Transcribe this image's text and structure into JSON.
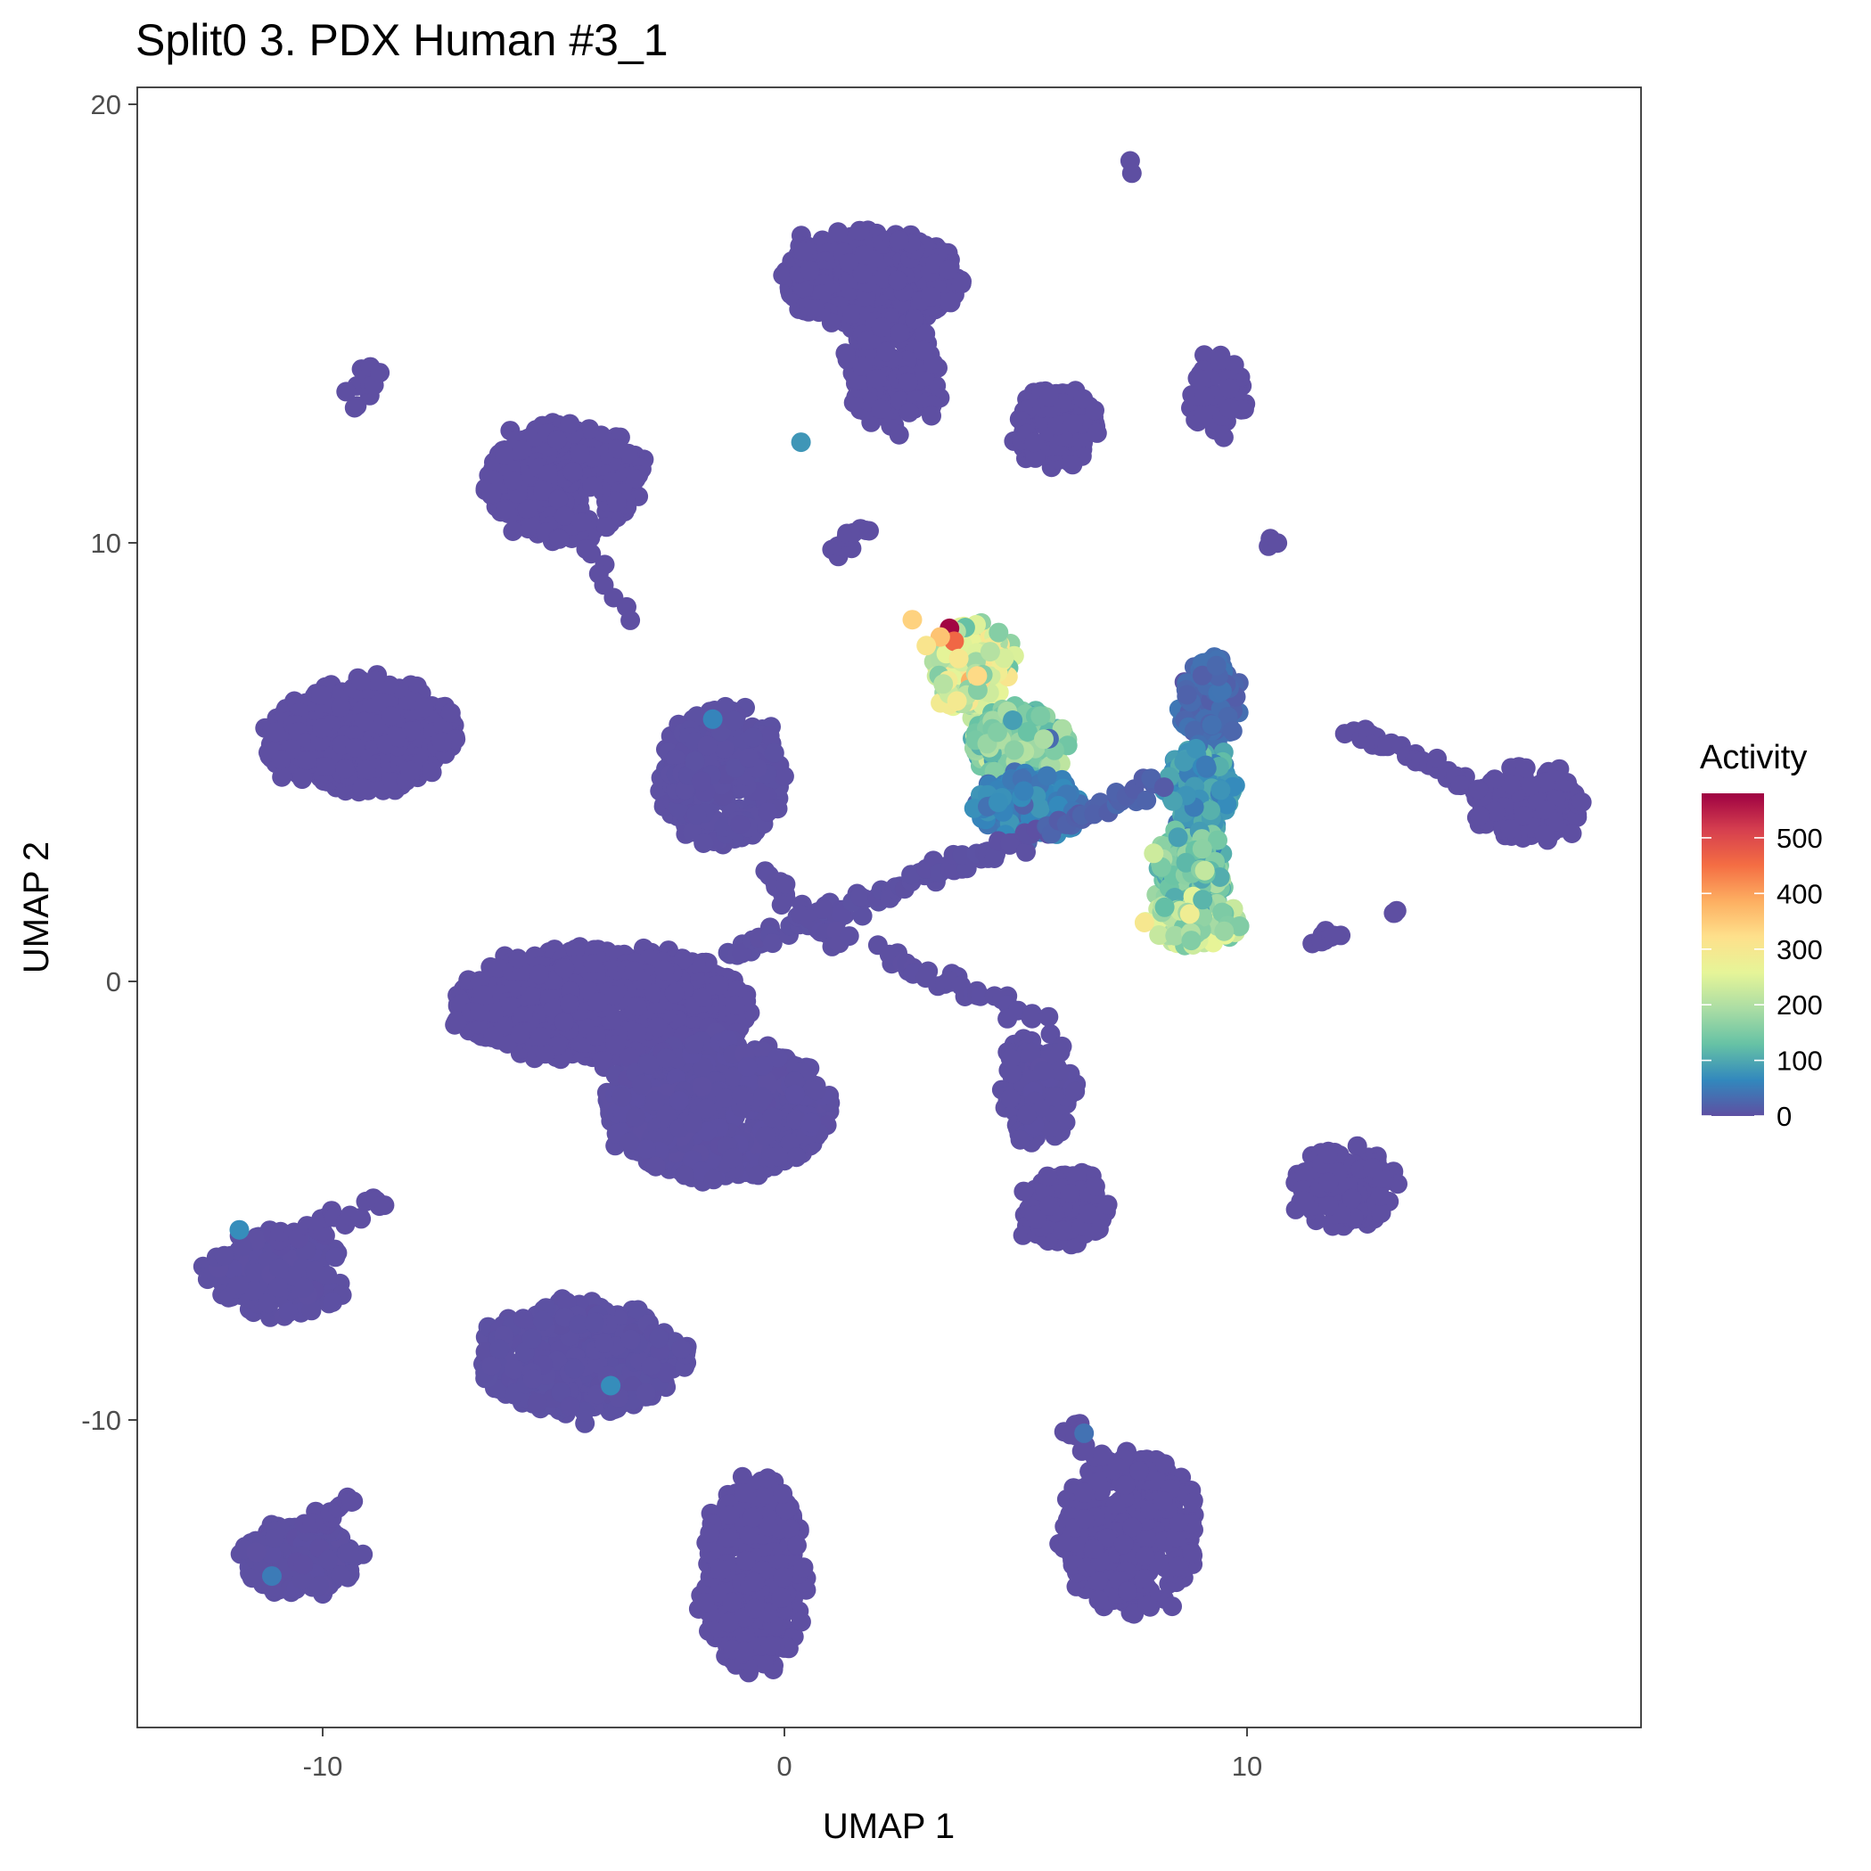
{
  "chart_data": {
    "type": "scatter",
    "title": "Split0 3. PDX Human #3_1",
    "xlabel": "UMAP 1",
    "ylabel": "UMAP 2",
    "xlim": [
      -14,
      18.4
    ],
    "ylim": [
      -17.5,
      20.4
    ],
    "x_ticks": [
      -10,
      0,
      10
    ],
    "y_ticks": [
      -10,
      0,
      10,
      20
    ],
    "x_tick_labels": [
      "-10",
      "0",
      "10"
    ],
    "y_tick_labels": [
      "-10",
      "0",
      "10",
      "20"
    ],
    "grid": false,
    "legend": {
      "title": "Activity",
      "placement": "right",
      "breaks": [
        0,
        100,
        200,
        300,
        400,
        500
      ],
      "labels": [
        "0",
        "100",
        "200",
        "300",
        "400",
        "500"
      ],
      "range": [
        0,
        580
      ],
      "colors": [
        "#5e4fa2",
        "#3288bd",
        "#66c2a5",
        "#abdda4",
        "#e6f598",
        "#fee08b",
        "#fdae61",
        "#f46d43",
        "#d53e4f",
        "#9e0142"
      ]
    },
    "clusters": [
      {
        "shape": "blob",
        "cx": 1.8,
        "cy": 16.0,
        "rx": 2.0,
        "ry": 1.1,
        "n": 420,
        "activity": 0
      },
      {
        "shape": "blob",
        "cx": 2.3,
        "cy": 13.8,
        "rx": 1.0,
        "ry": 1.4,
        "n": 160,
        "activity": 0
      },
      {
        "shape": "blob",
        "cx": 5.8,
        "cy": 12.5,
        "rx": 0.9,
        "ry": 0.9,
        "n": 110,
        "activity": 0
      },
      {
        "shape": "blob",
        "cx": 9.3,
        "cy": 13.3,
        "rx": 0.6,
        "ry": 0.9,
        "n": 60,
        "activity": 0
      },
      {
        "shape": "blob",
        "cx": -4.8,
        "cy": 11.3,
        "rx": 1.7,
        "ry": 1.3,
        "n": 360,
        "activity": 0
      },
      {
        "shape": "blob",
        "cx": -9.2,
        "cy": 5.4,
        "rx": 2.0,
        "ry": 1.3,
        "n": 380,
        "activity": 0
      },
      {
        "shape": "blob",
        "cx": -1.4,
        "cy": 4.5,
        "rx": 1.3,
        "ry": 1.6,
        "n": 280,
        "activity": 2
      },
      {
        "shape": "blob",
        "cx": -4.0,
        "cy": -0.8,
        "rx": 3.2,
        "ry": 1.3,
        "n": 800,
        "activity": 0
      },
      {
        "shape": "blob",
        "cx": -1.5,
        "cy": -3.2,
        "rx": 2.4,
        "ry": 1.6,
        "n": 700,
        "activity": 1
      },
      {
        "shape": "blob",
        "cx": -11.0,
        "cy": -7.0,
        "rx": 1.5,
        "ry": 1.0,
        "n": 160,
        "activity": 1
      },
      {
        "shape": "blob",
        "cx": -4.4,
        "cy": -9.0,
        "rx": 2.2,
        "ry": 1.3,
        "n": 420,
        "activity": 2
      },
      {
        "shape": "blob",
        "cx": -10.5,
        "cy": -13.6,
        "rx": 1.3,
        "ry": 0.8,
        "n": 170,
        "activity": 1
      },
      {
        "shape": "blob",
        "cx": -0.7,
        "cy": -13.9,
        "rx": 1.1,
        "ry": 2.3,
        "n": 330,
        "activity": 0
      },
      {
        "shape": "blob",
        "cx": 7.4,
        "cy": -13.0,
        "rx": 1.5,
        "ry": 1.8,
        "n": 380,
        "activity": 0
      },
      {
        "shape": "blob",
        "cx": 12.0,
        "cy": -5.0,
        "rx": 1.1,
        "ry": 0.9,
        "n": 130,
        "activity": 0
      },
      {
        "shape": "blob",
        "cx": 16.0,
        "cy": 3.8,
        "rx": 1.2,
        "ry": 0.9,
        "n": 120,
        "activity": 0
      },
      {
        "shape": "blob",
        "cx": 6.0,
        "cy": -5.5,
        "rx": 0.9,
        "ry": 0.9,
        "n": 120,
        "activity": 0
      },
      {
        "shape": "blob",
        "cx": 5.4,
        "cy": -2.8,
        "rx": 0.8,
        "ry": 1.3,
        "n": 130,
        "activity": 1
      },
      {
        "shape": "blob",
        "cx": 4.0,
        "cy": 7.0,
        "rx": 0.8,
        "ry": 1.0,
        "n": 170,
        "activity": 240
      },
      {
        "shape": "blob",
        "cx": 5.0,
        "cy": 5.2,
        "rx": 1.0,
        "ry": 0.8,
        "n": 220,
        "activity": 150
      },
      {
        "shape": "blob",
        "cx": 5.2,
        "cy": 3.8,
        "rx": 1.1,
        "ry": 0.7,
        "n": 200,
        "activity": 55
      },
      {
        "shape": "blob",
        "cx": 9.1,
        "cy": 6.2,
        "rx": 0.6,
        "ry": 1.0,
        "n": 150,
        "activity": 30
      },
      {
        "shape": "blob",
        "cx": 8.9,
        "cy": 4.2,
        "rx": 0.7,
        "ry": 1.0,
        "n": 170,
        "activity": 80
      },
      {
        "shape": "blob",
        "cx": 8.7,
        "cy": 2.2,
        "rx": 0.8,
        "ry": 1.0,
        "n": 180,
        "activity": 140
      },
      {
        "shape": "blob",
        "cx": 8.8,
        "cy": 1.1,
        "rx": 0.9,
        "ry": 0.5,
        "n": 120,
        "activity": 190
      },
      {
        "shape": "line",
        "x1": -1.3,
        "y1": 0.4,
        "x2": 5.5,
        "y2": 3.2,
        "n": 80,
        "activity": 2
      },
      {
        "shape": "line",
        "x1": -0.5,
        "y1": 2.2,
        "x2": 1.2,
        "y2": 0.5,
        "n": 25,
        "activity": 1
      },
      {
        "shape": "line",
        "x1": 2.0,
        "y1": 0.4,
        "x2": 5.5,
        "y2": -1.2,
        "n": 35,
        "activity": 1
      },
      {
        "shape": "line",
        "x1": 5.5,
        "y1": 3.2,
        "x2": 8.0,
        "y2": 4.3,
        "n": 30,
        "activity": 20
      },
      {
        "shape": "line",
        "x1": 12.2,
        "y1": 5.5,
        "x2": 15.0,
        "y2": 4.2,
        "n": 40,
        "activity": 0
      },
      {
        "shape": "line",
        "x1": -11.0,
        "y1": -6.2,
        "x2": -8.7,
        "y2": -5.4,
        "n": 25,
        "activity": 0
      },
      {
        "shape": "line",
        "x1": -10.2,
        "y1": -12.9,
        "x2": -9.3,
        "y2": -12.2,
        "n": 15,
        "activity": 0
      },
      {
        "shape": "line",
        "x1": 6.0,
        "y1": -10.5,
        "x2": 6.6,
        "y2": -11.2,
        "n": 12,
        "activity": 0
      },
      {
        "shape": "line",
        "x1": -5.9,
        "y1": 12.4,
        "x2": -3.4,
        "y2": 8.3,
        "n": 20,
        "activity": 0
      },
      {
        "shape": "line",
        "x1": -9.3,
        "y1": 13.1,
        "x2": -8.8,
        "y2": 13.8,
        "n": 10,
        "activity": 0
      },
      {
        "shape": "line",
        "x1": 1.1,
        "y1": 9.7,
        "x2": 1.7,
        "y2": 10.2,
        "n": 10,
        "activity": 0
      },
      {
        "shape": "line",
        "x1": 10.3,
        "y1": 10.0,
        "x2": 10.5,
        "y2": 9.8,
        "n": 4,
        "activity": 0
      },
      {
        "shape": "line",
        "x1": 7.3,
        "y1": 18.6,
        "x2": 7.4,
        "y2": 18.6,
        "n": 2,
        "activity": 0
      },
      {
        "shape": "line",
        "x1": 11.3,
        "y1": 0.7,
        "x2": 11.9,
        "y2": 0.7,
        "n": 8,
        "activity": 0
      },
      {
        "shape": "line",
        "x1": 13.0,
        "y1": 1.5,
        "x2": 13.1,
        "y2": 1.3,
        "n": 3,
        "activity": 0
      }
    ],
    "points": [
      {
        "x": 3.5,
        "y": 7.9,
        "value": 575
      },
      {
        "x": 3.6,
        "y": 7.6,
        "value": 460
      },
      {
        "x": 2.7,
        "y": 8.1,
        "value": 340
      },
      {
        "x": 3.3,
        "y": 7.7,
        "value": 360
      },
      {
        "x": 3.0,
        "y": 7.5,
        "value": 310
      },
      {
        "x": 4.1,
        "y": 6.8,
        "value": 330
      },
      {
        "x": 3.7,
        "y": 7.2,
        "value": 300
      },
      {
        "x": 7.7,
        "y": 1.1,
        "value": 300
      },
      {
        "x": 7.9,
        "y": 2.7,
        "value": 230
      },
      {
        "x": 9.0,
        "y": 2.3,
        "value": 220
      },
      {
        "x": 0.3,
        "y": 12.2,
        "value": 80
      },
      {
        "x": -11.8,
        "y": -6.0,
        "value": 70
      },
      {
        "x": -3.8,
        "y": -9.6,
        "value": 70
      },
      {
        "x": -1.6,
        "y": 5.8,
        "value": 60
      },
      {
        "x": 6.4,
        "y": -10.7,
        "value": 40
      },
      {
        "x": -11.1,
        "y": -14.0,
        "value": 50
      }
    ]
  }
}
